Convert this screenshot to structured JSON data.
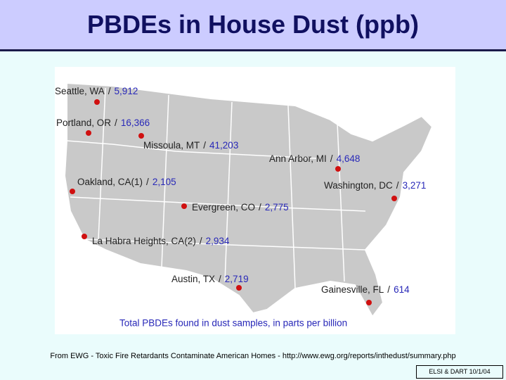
{
  "header": {
    "title": "PBDEs in House Dust (ppb)"
  },
  "map": {
    "separator": "/",
    "locations": [
      {
        "name": "Seattle, WA",
        "value": "5,912"
      },
      {
        "name": "Portland, OR",
        "value": "16,366"
      },
      {
        "name": "Missoula, MT",
        "value": "41,203"
      },
      {
        "name": "Ann Arbor, MI",
        "value": "4,648"
      },
      {
        "name": "Oakland, CA(1)",
        "value": "2,105"
      },
      {
        "name": "Washington, DC",
        "value": "3,271"
      },
      {
        "name": "Evergreen, CO",
        "value": "2,775"
      },
      {
        "name": "La Habra Heights, CA(2)",
        "value": "2,934"
      },
      {
        "name": "Austin, TX",
        "value": "2,719"
      },
      {
        "name": "Gainesville, FL",
        "value": "614"
      }
    ],
    "caption": "Total PBDEs found in dust samples, in parts per billion"
  },
  "source": "From EWG - Toxic Fire Retardants Contaminate American Homes - http://www.ewg.org/reports/inthedust/summary.php",
  "footer": "ELSI & DART 10/1/04"
}
